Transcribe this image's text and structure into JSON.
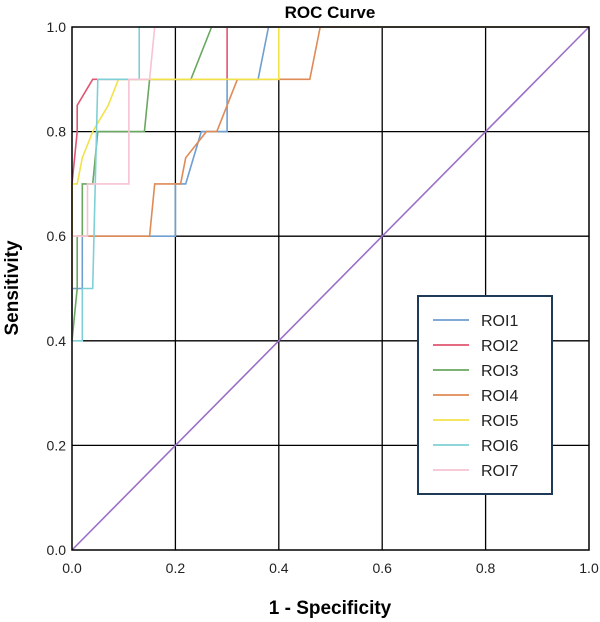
{
  "chart_data": {
    "type": "line",
    "title": "ROC Curve",
    "xlabel": "1 - Specificity",
    "ylabel": "Sensitivity",
    "xlim": [
      0,
      1
    ],
    "ylim": [
      0,
      1
    ],
    "x_ticks": [
      "0.0",
      "0.2",
      "0.4",
      "0.6",
      "0.8",
      "1.0"
    ],
    "y_ticks": [
      "0.0",
      "0.2",
      "0.4",
      "0.6",
      "0.8",
      "1.0"
    ],
    "grid": true,
    "legend_position": "right",
    "series": [
      {
        "name": "ROI1",
        "color": "#6f9fd0",
        "points": [
          [
            0,
            0.4
          ],
          [
            0,
            0.5
          ],
          [
            0.02,
            0.5
          ],
          [
            0.02,
            0.6
          ],
          [
            0.2,
            0.6
          ],
          [
            0.2,
            0.7
          ],
          [
            0.22,
            0.7
          ],
          [
            0.25,
            0.8
          ],
          [
            0.3,
            0.8
          ],
          [
            0.3,
            0.9
          ],
          [
            0.36,
            0.9
          ],
          [
            0.38,
            1.0
          ],
          [
            1,
            1
          ]
        ]
      },
      {
        "name": "ROI2",
        "color": "#e05570",
        "points": [
          [
            0,
            0.6
          ],
          [
            0,
            0.7
          ],
          [
            0.01,
            0.8
          ],
          [
            0.01,
            0.85
          ],
          [
            0.04,
            0.9
          ],
          [
            0.3,
            0.9
          ],
          [
            0.3,
            1.0
          ],
          [
            1,
            1
          ]
        ]
      },
      {
        "name": "ROI3",
        "color": "#69a860",
        "points": [
          [
            0,
            0.4
          ],
          [
            0.01,
            0.5
          ],
          [
            0.01,
            0.6
          ],
          [
            0.02,
            0.6
          ],
          [
            0.02,
            0.7
          ],
          [
            0.04,
            0.7
          ],
          [
            0.05,
            0.8
          ],
          [
            0.14,
            0.8
          ],
          [
            0.15,
            0.9
          ],
          [
            0.23,
            0.9
          ],
          [
            0.27,
            1.0
          ],
          [
            1,
            1
          ]
        ]
      },
      {
        "name": "ROI4",
        "color": "#e08a55",
        "points": [
          [
            0,
            0.6
          ],
          [
            0.15,
            0.6
          ],
          [
            0.16,
            0.7
          ],
          [
            0.21,
            0.7
          ],
          [
            0.22,
            0.75
          ],
          [
            0.26,
            0.8
          ],
          [
            0.28,
            0.8
          ],
          [
            0.32,
            0.9
          ],
          [
            0.46,
            0.9
          ],
          [
            0.48,
            1.0
          ],
          [
            1,
            1
          ]
        ]
      },
      {
        "name": "ROI5",
        "color": "#f2e24a",
        "points": [
          [
            0,
            0.5
          ],
          [
            0,
            0.7
          ],
          [
            0.01,
            0.7
          ],
          [
            0.02,
            0.75
          ],
          [
            0.04,
            0.8
          ],
          [
            0.07,
            0.85
          ],
          [
            0.09,
            0.9
          ],
          [
            0.4,
            0.9
          ],
          [
            0.4,
            1.0
          ],
          [
            1,
            1
          ]
        ]
      },
      {
        "name": "ROI6",
        "color": "#7fd0d6",
        "points": [
          [
            0,
            0.4
          ],
          [
            0.02,
            0.4
          ],
          [
            0.02,
            0.5
          ],
          [
            0.04,
            0.5
          ],
          [
            0.05,
            0.9
          ],
          [
            0.13,
            0.9
          ],
          [
            0.13,
            1.0
          ],
          [
            1,
            1
          ]
        ]
      },
      {
        "name": "ROI7",
        "color": "#f6c3d2",
        "points": [
          [
            0,
            0.4
          ],
          [
            0,
            0.6
          ],
          [
            0.03,
            0.6
          ],
          [
            0.03,
            0.7
          ],
          [
            0.11,
            0.7
          ],
          [
            0.11,
            0.9
          ],
          [
            0.15,
            0.9
          ],
          [
            0.16,
            1.0
          ],
          [
            1,
            1
          ]
        ]
      },
      {
        "color": "#9b6fc8",
        "points": [
          [
            0,
            0
          ],
          [
            1,
            1
          ]
        ]
      }
    ]
  }
}
